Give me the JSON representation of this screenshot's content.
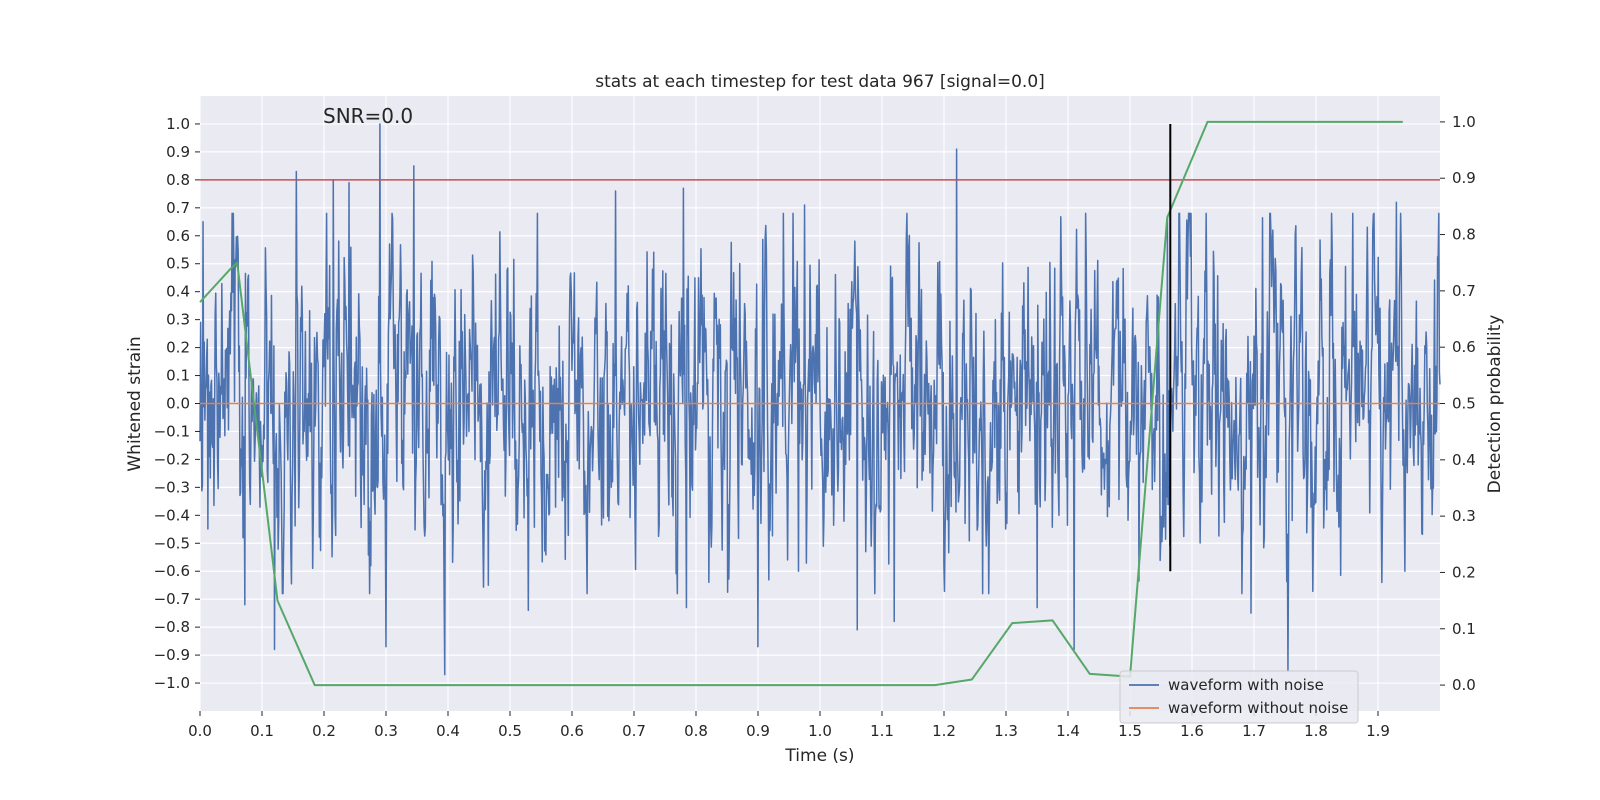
{
  "chart_data": {
    "type": "line",
    "title": "stats at each timestep for test data 967 [signal=0.0]",
    "xlabel": "Time (s)",
    "ylabel": "Whitened strain",
    "y2label": "Detection probability",
    "annotation": "SNR=0.0",
    "xlim": [
      0.0,
      2.0
    ],
    "ylim": [
      -1.1,
      1.1
    ],
    "y2lim": [
      -0.046,
      1.046
    ],
    "xticks": [
      0.0,
      0.1,
      0.2,
      0.3,
      0.4,
      0.5,
      0.6,
      0.7,
      0.8,
      0.9,
      1.0,
      1.1,
      1.2,
      1.3,
      1.4,
      1.5,
      1.6,
      1.7,
      1.8,
      1.9
    ],
    "xtick_labels": [
      "0.0",
      "0.1",
      "0.2",
      "0.3",
      "0.4",
      "0.5",
      "0.6",
      "0.7",
      "0.8",
      "0.9",
      "1.0",
      "1.1",
      "1.2",
      "1.3",
      "1.4",
      "1.5",
      "1.6",
      "1.7",
      "1.8",
      "1.9"
    ],
    "yticks": [
      1.0,
      0.9,
      0.8,
      0.7,
      0.6,
      0.5,
      0.4,
      0.3,
      0.2,
      0.1,
      0.0,
      -0.1,
      -0.2,
      -0.3,
      -0.4,
      -0.5,
      -0.6,
      -0.7,
      -0.8,
      -0.9,
      -1.0
    ],
    "ytick_labels": [
      "1.0",
      "0.9",
      "0.8",
      "0.7",
      "0.6",
      "0.5",
      "0.4",
      "0.3",
      "0.2",
      "0.1",
      "0.0",
      "−0.1",
      "−0.2",
      "−0.3",
      "−0.4",
      "−0.5",
      "−0.6",
      "−0.7",
      "−0.8",
      "−0.9",
      "−1.0"
    ],
    "y2ticks": [
      1.0,
      0.9,
      0.8,
      0.7,
      0.6,
      0.5,
      0.4,
      0.3,
      0.2,
      0.1,
      0.0
    ],
    "y2tick_labels": [
      "1.0",
      "0.9",
      "0.8",
      "0.7",
      "0.6",
      "0.5",
      "0.4",
      "0.3",
      "0.2",
      "0.1",
      "0.0"
    ],
    "threshold": {
      "y": 0.8,
      "color": "#c44e52"
    },
    "event_marker": {
      "x": 1.565,
      "y_from": -0.6,
      "y_to": 1.0,
      "color": "#000000"
    },
    "noise_series": {
      "name": "waveform with noise",
      "color": "#4c72b0",
      "t_start": 0.0,
      "t_end": 2.0,
      "num_samples": 2048,
      "seed": 967,
      "spikes": [
        {
          "t": 0.005,
          "v": 0.65
        },
        {
          "t": 0.06,
          "v": 0.5
        },
        {
          "t": 0.072,
          "v": -0.72
        },
        {
          "t": 0.12,
          "v": -0.88
        },
        {
          "t": 0.155,
          "v": 0.83
        },
        {
          "t": 0.215,
          "v": 0.8
        },
        {
          "t": 0.24,
          "v": 0.79
        },
        {
          "t": 0.29,
          "v": 1.0
        },
        {
          "t": 0.3,
          "v": -0.87
        },
        {
          "t": 0.345,
          "v": 0.85
        },
        {
          "t": 0.395,
          "v": -0.97
        },
        {
          "t": 0.465,
          "v": -0.65
        },
        {
          "t": 0.53,
          "v": -0.74
        },
        {
          "t": 0.67,
          "v": 0.76
        },
        {
          "t": 0.78,
          "v": 0.77
        },
        {
          "t": 0.785,
          "v": -0.73
        },
        {
          "t": 0.9,
          "v": -0.87
        },
        {
          "t": 0.975,
          "v": 0.71
        },
        {
          "t": 1.06,
          "v": -0.81
        },
        {
          "t": 1.12,
          "v": -0.78
        },
        {
          "t": 1.22,
          "v": 0.91
        },
        {
          "t": 1.35,
          "v": -0.73
        },
        {
          "t": 1.41,
          "v": -0.88
        },
        {
          "t": 1.56,
          "v": 0.67
        },
        {
          "t": 1.695,
          "v": -0.75
        },
        {
          "t": 1.755,
          "v": -0.96
        },
        {
          "t": 1.93,
          "v": 0.72
        }
      ]
    },
    "clean_series": {
      "name": "waveform without noise",
      "color": "#dd8452",
      "x": [
        0.0,
        2.0
      ],
      "y": [
        0.0,
        0.0
      ]
    },
    "probability_series": {
      "name": "detection probability",
      "color": "#55a868",
      "x": [
        0.0,
        0.05,
        0.06,
        0.125,
        0.185,
        1.185,
        1.245,
        1.31,
        1.375,
        1.435,
        1.5,
        1.56,
        1.625,
        1.94
      ],
      "y": [
        0.68,
        0.74,
        0.75,
        0.15,
        0.0,
        0.0,
        0.01,
        0.11,
        0.115,
        0.02,
        0.015,
        0.83,
        1.0,
        1.0
      ]
    },
    "legend": {
      "position": "lower-right",
      "entries": [
        "waveform with noise",
        "waveform without noise"
      ]
    }
  }
}
